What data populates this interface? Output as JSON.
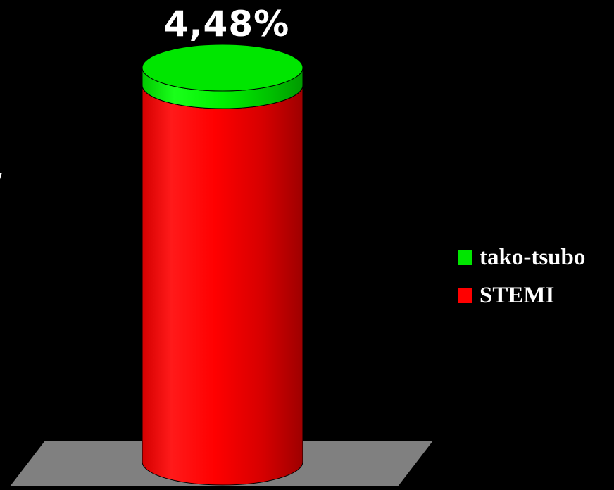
{
  "chart_data": {
    "type": "bar",
    "style": "3d-cylinder-stacked-100",
    "categories": [
      ""
    ],
    "series": [
      {
        "name": "STEMI",
        "values": [
          95.52
        ],
        "color": "#ff0000"
      },
      {
        "name": "tako-tsubo",
        "values": [
          4.48
        ],
        "color": "#00e600"
      }
    ],
    "data_labels": [
      "4,48%"
    ],
    "ylim": [
      0,
      100
    ],
    "legend_position": "right",
    "grid": false,
    "background": "#000000",
    "floor_color": "#808080"
  },
  "edge_text": "/"
}
